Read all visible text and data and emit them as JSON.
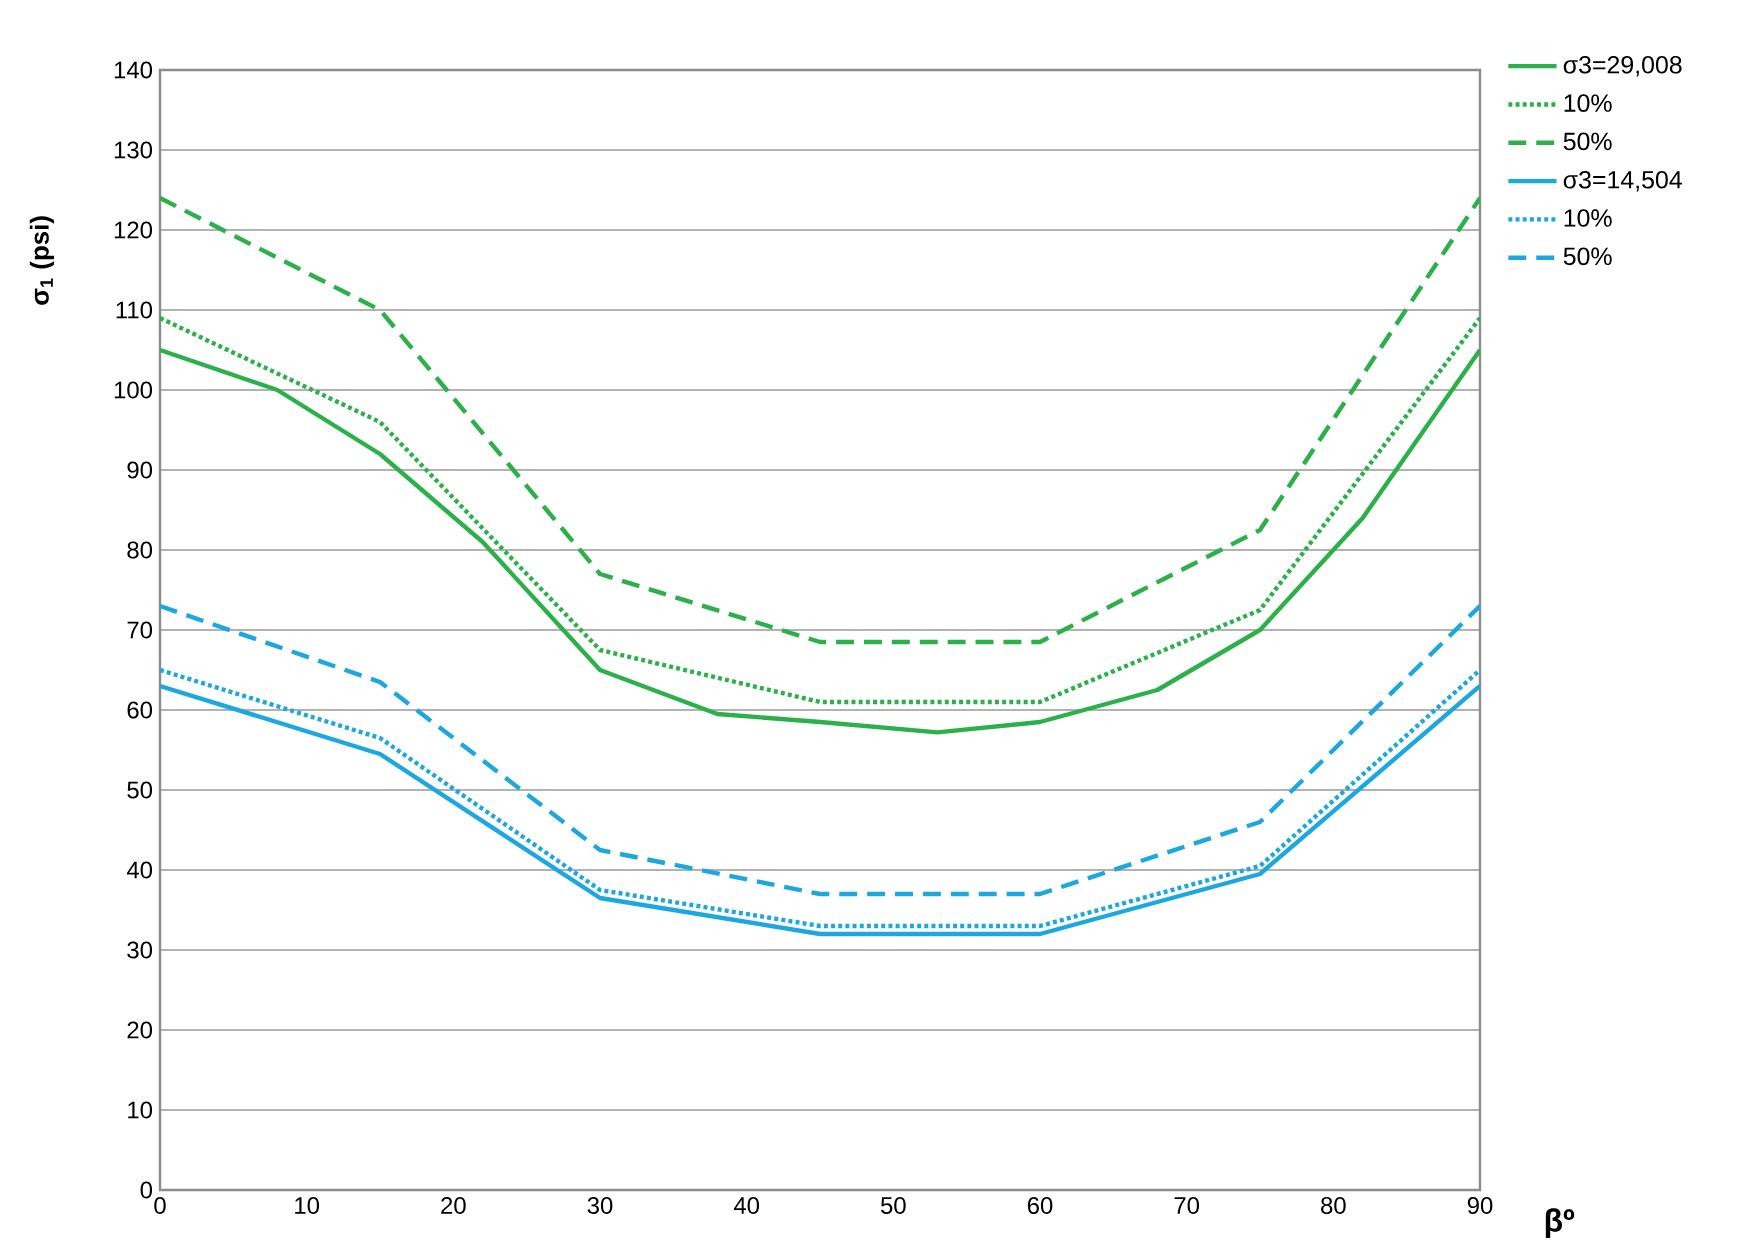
{
  "chart_data": {
    "type": "line",
    "xlabel": "βº",
    "ylabel": "σ$_{1}$ (psi)",
    "xlim": [
      0,
      90
    ],
    "xticks": [
      0,
      10,
      20,
      30,
      40,
      50,
      60,
      70,
      80,
      90
    ],
    "ylim": [
      0,
      140
    ],
    "yticks": [
      0,
      10,
      20,
      30,
      40,
      50,
      60,
      70,
      80,
      90,
      100,
      110,
      120,
      130,
      140
    ],
    "grid": "y",
    "legend": "top right",
    "marker": "none",
    "series": [
      {
        "name": "σ3=29,008",
        "color": "#2bb04a",
        "line_style": "solid",
        "x": [
          0,
          8,
          15,
          22,
          30,
          38,
          45,
          53,
          60,
          68,
          75,
          82,
          90
        ],
        "values": [
          105,
          100,
          92,
          81,
          65,
          59.5,
          58.5,
          57.2,
          58.5,
          62.5,
          70,
          84,
          105
        ]
      },
      {
        "name": "10%",
        "color": "#2bb04a",
        "line_style": "dotted",
        "x": [
          0,
          15,
          30,
          45,
          60,
          75,
          90
        ],
        "values": [
          109,
          96,
          67.5,
          61,
          61,
          72.5,
          109
        ]
      },
      {
        "name": "50%",
        "color": "#2bb04a",
        "line_style": "dashed",
        "x": [
          0,
          15,
          30,
          45,
          60,
          75,
          90
        ],
        "values": [
          124,
          110,
          77,
          68.5,
          68.5,
          82.5,
          124
        ]
      },
      {
        "name": "σ3=14,504",
        "color": "#1ca7e0",
        "line_style": "solid",
        "x": [
          0,
          15,
          30,
          45,
          60,
          75,
          90
        ],
        "values": [
          63,
          54.5,
          36.5,
          32,
          32,
          39.5,
          63
        ]
      },
      {
        "name": "10%",
        "color": "#1ca7e0",
        "line_style": "dotted",
        "x": [
          0,
          15,
          30,
          45,
          60,
          75,
          90
        ],
        "values": [
          65,
          56.5,
          37.5,
          33,
          33,
          40.5,
          65
        ]
      },
      {
        "name": "50%",
        "color": "#1ca7e0",
        "line_style": "dashed",
        "x": [
          0,
          15,
          30,
          45,
          60,
          75,
          90
        ],
        "values": [
          73,
          63.5,
          42.5,
          37,
          37,
          46,
          73
        ]
      }
    ]
  }
}
